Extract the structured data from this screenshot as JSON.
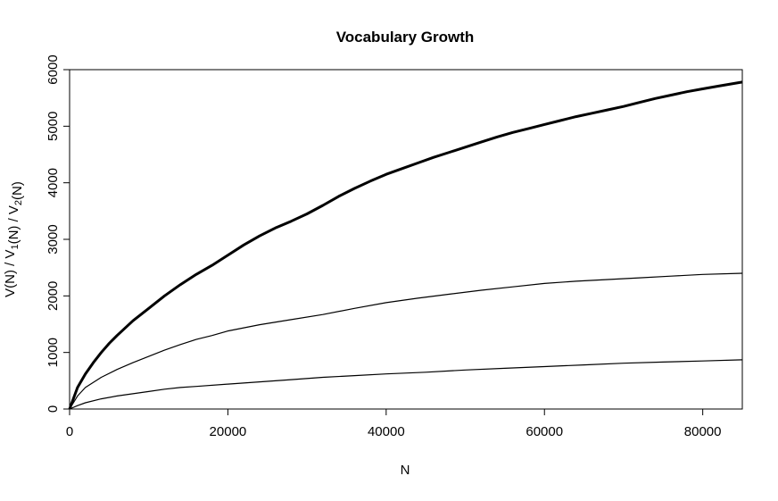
{
  "chart_data": {
    "type": "line",
    "title": "Vocabulary Growth",
    "xlabel": "N",
    "ylabel": {
      "parts": [
        {
          "text": "V(N) / V",
          "sub": ""
        },
        {
          "text": "",
          "sub": "1"
        },
        {
          "text": "(N) / V",
          "sub": ""
        },
        {
          "text": "",
          "sub": "2"
        },
        {
          "text": "(N)",
          "sub": ""
        }
      ]
    },
    "xlim": [
      0,
      85000
    ],
    "ylim": [
      0,
      6000
    ],
    "x_ticks": [
      0,
      20000,
      40000,
      60000,
      80000
    ],
    "x_tick_labels": [
      "0",
      "20000",
      "40000",
      "60000",
      "80000"
    ],
    "y_ticks": [
      0,
      1000,
      2000,
      3000,
      4000,
      5000,
      6000
    ],
    "y_tick_labels": [
      "0",
      "1000",
      "2000",
      "3000",
      "4000",
      "5000",
      "6000"
    ],
    "grid": false,
    "series": [
      {
        "key": "V",
        "color": "#000000",
        "weight": "thick",
        "x": [
          0,
          1000,
          2000,
          3000,
          4000,
          5000,
          6000,
          8000,
          10000,
          12000,
          14000,
          16000,
          18000,
          20000,
          22000,
          24000,
          26000,
          28000,
          30000,
          32000,
          34000,
          36000,
          38000,
          40000,
          42000,
          44000,
          46000,
          48000,
          50000,
          52000,
          54000,
          56000,
          58000,
          60000,
          62000,
          64000,
          66000,
          68000,
          70000,
          72000,
          74000,
          76000,
          78000,
          80000,
          82000,
          85000
        ],
        "y": [
          0,
          380,
          620,
          820,
          1000,
          1160,
          1300,
          1560,
          1780,
          2000,
          2200,
          2380,
          2540,
          2720,
          2900,
          3060,
          3200,
          3320,
          3450,
          3600,
          3760,
          3900,
          4030,
          4150,
          4250,
          4350,
          4450,
          4540,
          4630,
          4720,
          4810,
          4890,
          4960,
          5030,
          5100,
          5170,
          5230,
          5290,
          5350,
          5420,
          5490,
          5550,
          5610,
          5660,
          5710,
          5780
        ]
      },
      {
        "key": "V1",
        "color": "#000000",
        "weight": "thin",
        "x": [
          0,
          1000,
          2000,
          4000,
          6000,
          8000,
          10000,
          12000,
          14000,
          16000,
          18000,
          20000,
          24000,
          28000,
          32000,
          36000,
          40000,
          44000,
          48000,
          52000,
          56000,
          60000,
          64000,
          68000,
          72000,
          76000,
          80000,
          85000
        ],
        "y": [
          0,
          230,
          380,
          560,
          700,
          820,
          930,
          1040,
          1140,
          1230,
          1300,
          1380,
          1490,
          1580,
          1670,
          1780,
          1880,
          1960,
          2030,
          2100,
          2160,
          2220,
          2260,
          2290,
          2320,
          2350,
          2380,
          2400
        ]
      },
      {
        "key": "V2",
        "color": "#000000",
        "weight": "thin",
        "x": [
          0,
          1000,
          2000,
          4000,
          6000,
          8000,
          10000,
          12000,
          14000,
          16000,
          20000,
          24000,
          28000,
          32000,
          36000,
          40000,
          45000,
          50000,
          55000,
          60000,
          65000,
          70000,
          75000,
          80000,
          85000
        ],
        "y": [
          0,
          60,
          110,
          180,
          230,
          270,
          310,
          350,
          380,
          400,
          440,
          480,
          520,
          560,
          590,
          620,
          650,
          690,
          720,
          750,
          780,
          810,
          830,
          850,
          870
        ]
      }
    ]
  }
}
